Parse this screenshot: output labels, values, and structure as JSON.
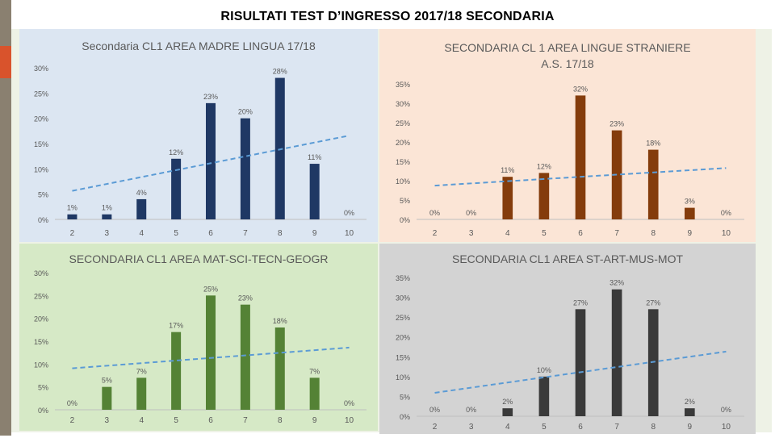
{
  "slide": {
    "title": "RISULTATI TEST D’INGRESSO 2017/18 SECONDARIA"
  },
  "chart_data": [
    {
      "type": "bar",
      "title": "Secondaria CL1 AREA MADRE LINGUA 17/18",
      "categories": [
        "2",
        "3",
        "4",
        "5",
        "6",
        "7",
        "8",
        "9",
        "10"
      ],
      "values": [
        1,
        1,
        4,
        12,
        23,
        20,
        28,
        11,
        0
      ],
      "data_labels": [
        "1%",
        "1%",
        "4%",
        "12%",
        "23%",
        "20%",
        "28%",
        "11%",
        "0%"
      ],
      "yticks": [
        "0%",
        "5%",
        "10%",
        "15%",
        "20%",
        "25%",
        "30%"
      ],
      "ylim": [
        0,
        30
      ],
      "trendline": "linear",
      "bar_color": "#1f3864",
      "background": "#dce6f2"
    },
    {
      "type": "bar",
      "title": "SECONDARIA CL 1 AREA LINGUE STRANIERE A.S. 17/18",
      "categories": [
        "2",
        "3",
        "4",
        "5",
        "6",
        "7",
        "8",
        "9",
        "10"
      ],
      "values": [
        0,
        0,
        11,
        12,
        32,
        23,
        18,
        3,
        0
      ],
      "data_labels": [
        "0%",
        "0%",
        "11%",
        "12%",
        "32%",
        "23%",
        "18%",
        "3%",
        "0%"
      ],
      "yticks": [
        "0%",
        "5%",
        "10%",
        "15%",
        "20%",
        "25%",
        "30%",
        "35%"
      ],
      "ylim": [
        0,
        35
      ],
      "trendline": "linear",
      "bar_color": "#843c0c",
      "background": "#fbe5d6"
    },
    {
      "type": "bar",
      "title": "SECONDARIA CL1 AREA MAT-SCI-TECN-GEOGR",
      "categories": [
        "2",
        "3",
        "4",
        "5",
        "6",
        "7",
        "8",
        "9",
        "10"
      ],
      "values": [
        0,
        5,
        7,
        17,
        25,
        23,
        18,
        7,
        0
      ],
      "data_labels": [
        "0%",
        "5%",
        "7%",
        "17%",
        "25%",
        "23%",
        "18%",
        "7%",
        "0%"
      ],
      "yticks": [
        "0%",
        "5%",
        "10%",
        "15%",
        "20%",
        "25%",
        "30%"
      ],
      "ylim": [
        0,
        30
      ],
      "trendline": "linear",
      "bar_color": "#548235",
      "background": "#d6e9c6"
    },
    {
      "type": "bar",
      "title": "SECONDARIA CL1 AREA ST-ART-MUS-MOT",
      "categories": [
        "2",
        "3",
        "4",
        "5",
        "6",
        "7",
        "8",
        "9",
        "10"
      ],
      "values": [
        0,
        0,
        2,
        10,
        27,
        32,
        27,
        2,
        0
      ],
      "data_labels": [
        "0%",
        "0%",
        "2%",
        "10%",
        "27%",
        "32%",
        "27%",
        "2%",
        "0%"
      ],
      "yticks": [
        "0%",
        "5%",
        "10%",
        "15%",
        "20%",
        "25%",
        "30%",
        "35%"
      ],
      "ylim": [
        0,
        35
      ],
      "trendline": "linear",
      "bar_color": "#3a3a3a",
      "background": "#d3d3d3"
    }
  ]
}
